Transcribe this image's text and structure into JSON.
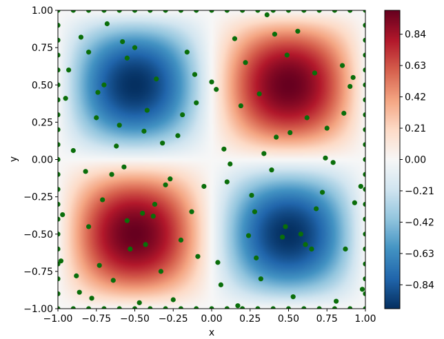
{
  "chart_data": {
    "type": "heatmap",
    "title": "",
    "xlabel": "x",
    "ylabel": "y",
    "xlim": [
      -1.0,
      1.0
    ],
    "ylim": [
      -1.0,
      1.0
    ],
    "function": "sin(pi*x)*sin(pi*y)",
    "colormap": "RdBu_r",
    "color_range": [
      -1.0,
      1.0
    ],
    "grid": false,
    "x_ticks": [
      -1.0,
      -0.75,
      -0.5,
      -0.25,
      0.0,
      0.25,
      0.5,
      0.75,
      1.0
    ],
    "x_tick_labels": [
      "−1.00",
      "−0.75",
      "−0.50",
      "−0.25",
      "0.00",
      "0.25",
      "0.50",
      "0.75",
      "1.00"
    ],
    "y_ticks": [
      -1.0,
      -0.75,
      -0.5,
      -0.25,
      0.0,
      0.25,
      0.5,
      0.75,
      1.0
    ],
    "y_tick_labels": [
      "−1.00",
      "−0.75",
      "−0.50",
      "−0.25",
      "0.00",
      "0.25",
      "0.50",
      "0.75",
      "1.00"
    ],
    "colorbar": {
      "ticks": [
        -0.84,
        -0.63,
        -0.42,
        -0.21,
        0.0,
        0.21,
        0.42,
        0.63,
        0.84
      ],
      "tick_labels": [
        "−0.84",
        "−0.63",
        "−0.42",
        "−0.21",
        "0.00",
        "0.21",
        "0.42",
        "0.63",
        "0.84"
      ]
    },
    "scatter": {
      "color": "#0a6e0a",
      "points": [
        [
          -1.0,
          -1.0
        ],
        [
          -0.9,
          -1.0
        ],
        [
          -0.8,
          -1.0
        ],
        [
          -0.7,
          -1.0
        ],
        [
          -0.6,
          -1.0
        ],
        [
          -0.5,
          -1.0
        ],
        [
          -0.4,
          -1.0
        ],
        [
          -0.3,
          -1.0
        ],
        [
          -0.2,
          -1.0
        ],
        [
          -0.1,
          -1.0
        ],
        [
          0.0,
          -1.0
        ],
        [
          0.1,
          -1.0
        ],
        [
          0.2,
          -1.0
        ],
        [
          0.3,
          -1.0
        ],
        [
          0.4,
          -1.0
        ],
        [
          0.5,
          -1.0
        ],
        [
          0.6,
          -1.0
        ],
        [
          0.7,
          -1.0
        ],
        [
          0.8,
          -1.0
        ],
        [
          0.9,
          -1.0
        ],
        [
          1.0,
          -1.0
        ],
        [
          -1.0,
          1.0
        ],
        [
          -0.9,
          1.0
        ],
        [
          -0.8,
          1.0
        ],
        [
          -0.7,
          1.0
        ],
        [
          -0.6,
          1.0
        ],
        [
          -0.5,
          1.0
        ],
        [
          -0.4,
          1.0
        ],
        [
          -0.3,
          1.0
        ],
        [
          -0.2,
          1.0
        ],
        [
          -0.1,
          1.0
        ],
        [
          0.0,
          1.0
        ],
        [
          0.1,
          1.0
        ],
        [
          0.2,
          1.0
        ],
        [
          0.3,
          1.0
        ],
        [
          0.4,
          1.0
        ],
        [
          0.5,
          1.0
        ],
        [
          0.6,
          1.0
        ],
        [
          0.7,
          1.0
        ],
        [
          0.8,
          1.0
        ],
        [
          0.9,
          1.0
        ],
        [
          1.0,
          1.0
        ],
        [
          -1.0,
          -0.9
        ],
        [
          -1.0,
          -0.8
        ],
        [
          -1.0,
          -0.7
        ],
        [
          -1.0,
          -0.6
        ],
        [
          -1.0,
          -0.5
        ],
        [
          -1.0,
          -0.4
        ],
        [
          -1.0,
          -0.3
        ],
        [
          -1.0,
          -0.2
        ],
        [
          -1.0,
          -0.1
        ],
        [
          -1.0,
          0.0
        ],
        [
          -1.0,
          0.1
        ],
        [
          -1.0,
          0.2
        ],
        [
          -1.0,
          0.3
        ],
        [
          -1.0,
          0.4
        ],
        [
          -1.0,
          0.5
        ],
        [
          -1.0,
          0.6
        ],
        [
          -1.0,
          0.7
        ],
        [
          -1.0,
          0.8
        ],
        [
          -1.0,
          0.9
        ],
        [
          1.0,
          -0.9
        ],
        [
          1.0,
          -0.8
        ],
        [
          1.0,
          -0.7
        ],
        [
          1.0,
          -0.6
        ],
        [
          1.0,
          -0.5
        ],
        [
          1.0,
          -0.4
        ],
        [
          1.0,
          -0.3
        ],
        [
          1.0,
          -0.2
        ],
        [
          1.0,
          -0.1
        ],
        [
          1.0,
          0.0
        ],
        [
          1.0,
          0.1
        ],
        [
          1.0,
          0.2
        ],
        [
          1.0,
          0.3
        ],
        [
          1.0,
          0.4
        ],
        [
          1.0,
          0.5
        ],
        [
          1.0,
          0.6
        ],
        [
          1.0,
          0.7
        ],
        [
          1.0,
          0.8
        ],
        [
          1.0,
          0.9
        ],
        [
          -0.98,
          -0.68
        ],
        [
          -0.97,
          -0.37
        ],
        [
          -0.95,
          0.41
        ],
        [
          -0.93,
          0.6
        ],
        [
          -0.9,
          0.06
        ],
        [
          -0.88,
          -0.78
        ],
        [
          -0.86,
          -0.89
        ],
        [
          -0.85,
          0.82
        ],
        [
          -0.82,
          -0.08
        ],
        [
          -0.8,
          -0.45
        ],
        [
          -0.8,
          0.72
        ],
        [
          -0.78,
          -0.93
        ],
        [
          -0.75,
          0.28
        ],
        [
          -0.74,
          0.45
        ],
        [
          -0.73,
          -0.71
        ],
        [
          -0.71,
          -0.27
        ],
        [
          -0.7,
          0.5
        ],
        [
          -0.68,
          0.91
        ],
        [
          -0.65,
          -0.1
        ],
        [
          -0.64,
          -0.81
        ],
        [
          -0.62,
          0.09
        ],
        [
          -0.6,
          0.23
        ],
        [
          -0.58,
          0.79
        ],
        [
          -0.57,
          -0.05
        ],
        [
          -0.55,
          -0.41
        ],
        [
          -0.55,
          0.68
        ],
        [
          -0.53,
          -0.6
        ],
        [
          -0.5,
          0.75
        ],
        [
          -0.47,
          -0.96
        ],
        [
          -0.45,
          -0.36
        ],
        [
          -0.44,
          0.19
        ],
        [
          -0.43,
          -0.57
        ],
        [
          -0.42,
          0.33
        ],
        [
          -0.38,
          -0.38
        ],
        [
          -0.37,
          -0.3
        ],
        [
          -0.36,
          0.54
        ],
        [
          -0.33,
          -0.75
        ],
        [
          -0.32,
          0.11
        ],
        [
          -0.3,
          -0.17
        ],
        [
          -0.27,
          -0.13
        ],
        [
          -0.25,
          -0.94
        ],
        [
          -0.22,
          0.16
        ],
        [
          -0.2,
          -0.54
        ],
        [
          -0.19,
          0.3
        ],
        [
          -0.16,
          0.72
        ],
        [
          -0.13,
          -0.35
        ],
        [
          -0.11,
          0.57
        ],
        [
          -0.1,
          0.38
        ],
        [
          -0.09,
          -0.65
        ],
        [
          -0.05,
          -0.18
        ],
        [
          0.0,
          0.52
        ],
        [
          0.03,
          0.47
        ],
        [
          0.04,
          -0.69
        ],
        [
          0.06,
          -0.84
        ],
        [
          0.08,
          0.07
        ],
        [
          0.1,
          -0.15
        ],
        [
          0.12,
          -0.03
        ],
        [
          0.15,
          0.81
        ],
        [
          0.17,
          -0.98
        ],
        [
          0.19,
          0.36
        ],
        [
          0.22,
          0.65
        ],
        [
          0.24,
          -0.51
        ],
        [
          0.26,
          -0.24
        ],
        [
          0.28,
          -0.35
        ],
        [
          0.29,
          -0.66
        ],
        [
          0.31,
          0.44
        ],
        [
          0.32,
          -0.8
        ],
        [
          0.34,
          0.04
        ],
        [
          0.36,
          0.97
        ],
        [
          0.39,
          -0.07
        ],
        [
          0.41,
          0.84
        ],
        [
          0.42,
          0.15
        ],
        [
          0.46,
          -0.52
        ],
        [
          0.48,
          -0.45
        ],
        [
          0.49,
          0.7
        ],
        [
          0.51,
          0.18
        ],
        [
          0.53,
          -0.92
        ],
        [
          0.56,
          0.86
        ],
        [
          0.58,
          -0.5
        ],
        [
          0.61,
          -0.57
        ],
        [
          0.62,
          0.28
        ],
        [
          0.65,
          -0.6
        ],
        [
          0.67,
          0.58
        ],
        [
          0.68,
          -0.33
        ],
        [
          0.72,
          -0.22
        ],
        [
          0.74,
          0.01
        ],
        [
          0.75,
          0.21
        ],
        [
          0.79,
          -0.02
        ],
        [
          0.81,
          -0.95
        ],
        [
          0.85,
          0.63
        ],
        [
          0.86,
          0.31
        ],
        [
          0.87,
          -0.6
        ],
        [
          0.9,
          0.49
        ],
        [
          0.92,
          0.55
        ],
        [
          0.93,
          -0.29
        ],
        [
          0.97,
          -0.18
        ],
        [
          0.98,
          -0.87
        ]
      ]
    }
  }
}
